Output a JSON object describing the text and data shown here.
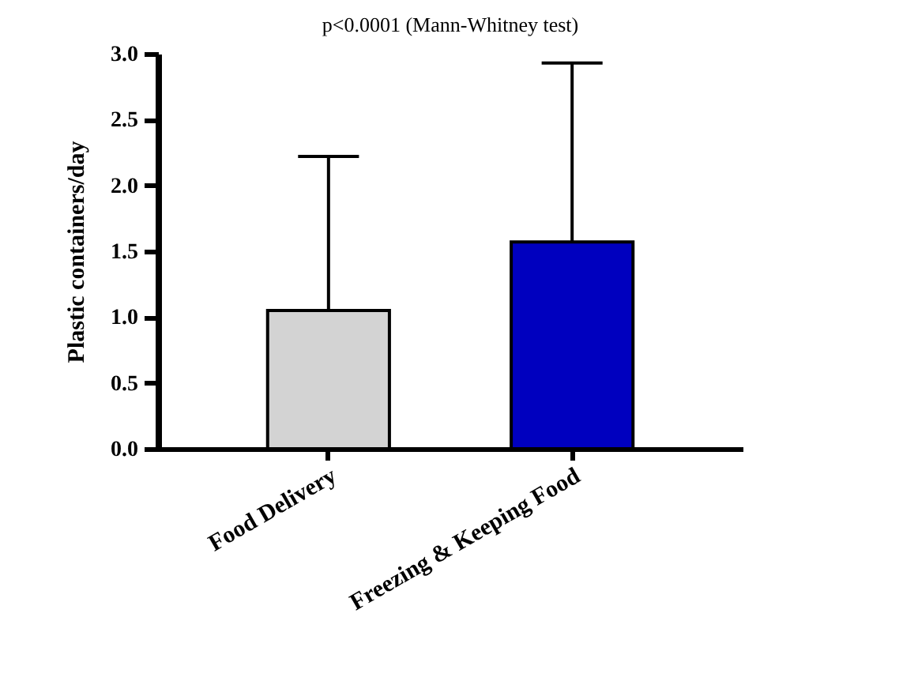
{
  "chart_data": {
    "type": "bar",
    "title": "p<0.0001 (Mann-Whitney test)",
    "ylabel": "Plastic containers/day",
    "categories": [
      "Food Delivery",
      "Freezing & Keeping Food"
    ],
    "values": [
      1.05,
      1.57
    ],
    "colors": [
      "#d3d3d3",
      "#0000bf"
    ],
    "errors": [
      [
        1.05,
        2.22
      ],
      [
        1.57,
        2.93
      ]
    ],
    "ylim": [
      0,
      3
    ],
    "yticks": [
      {
        "value": 0,
        "label": "0.0"
      },
      0.5,
      {
        "value": 1,
        "label": "1.0"
      },
      1.5,
      {
        "value": 2,
        "label": "2.0"
      },
      2.5,
      {
        "value": 3,
        "label": "3.0"
      }
    ],
    "grid": false
  }
}
